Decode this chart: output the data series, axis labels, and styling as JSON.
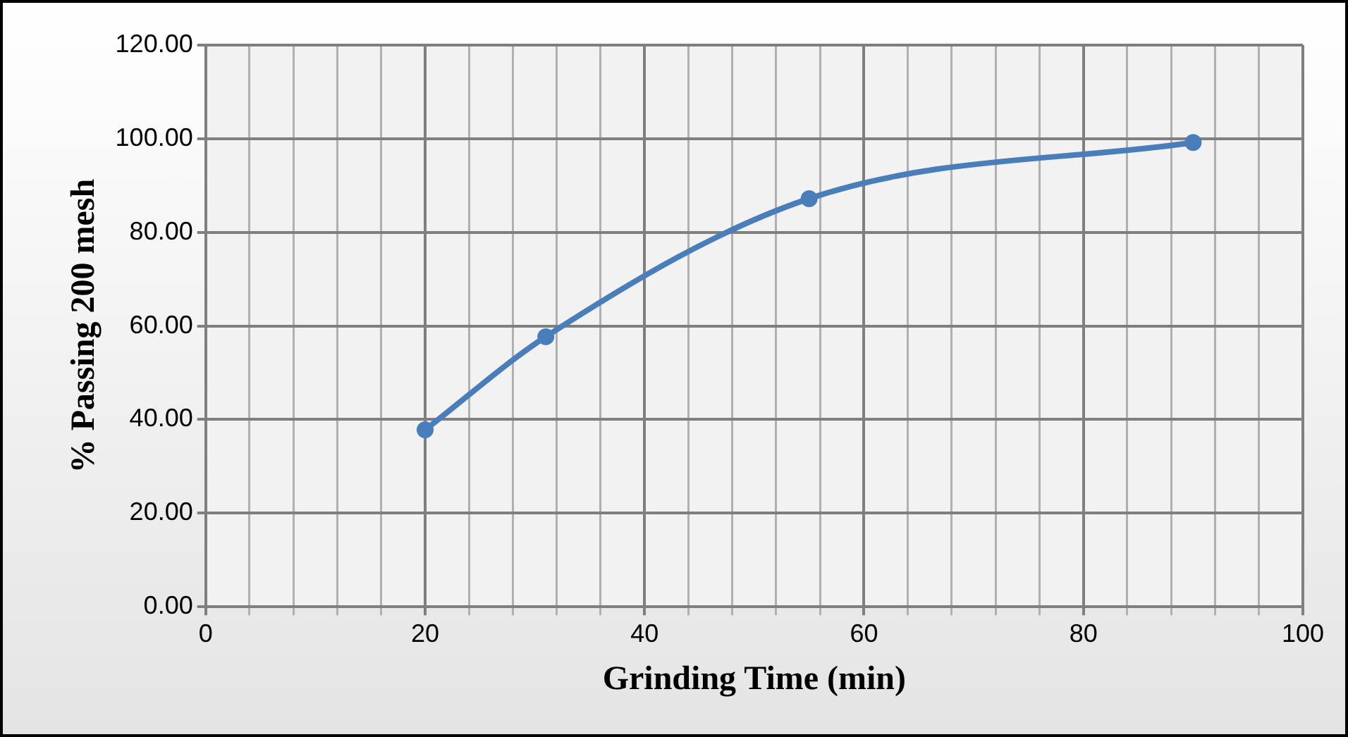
{
  "chart_data": {
    "type": "line",
    "xlabel": "Grinding Time (min)",
    "ylabel": "% Passing 200 mesh",
    "x": [
      20,
      31,
      55,
      90
    ],
    "series": [
      {
        "color": "#4a7ebb",
        "values": [
          37.8,
          57.7,
          87.2,
          99.2
        ]
      }
    ],
    "xlim": [
      0,
      100
    ],
    "xticks": [
      0,
      {
        "value": 4,
        "label": null
      },
      {
        "value": 8,
        "label": null
      },
      {
        "value": 12,
        "label": null
      },
      {
        "value": 16,
        "label": null
      },
      20,
      {
        "value": 24,
        "label": null
      },
      {
        "value": 28,
        "label": null
      },
      {
        "value": 32,
        "label": null
      },
      {
        "value": 36,
        "label": null
      },
      40,
      {
        "value": 44,
        "label": null
      },
      {
        "value": 48,
        "label": null
      },
      {
        "value": 52,
        "label": null
      },
      {
        "value": 56,
        "label": null
      },
      60,
      {
        "value": 64,
        "label": null
      },
      {
        "value": 68,
        "label": null
      },
      {
        "value": 72,
        "label": null
      },
      {
        "value": 76,
        "label": null
      },
      80,
      {
        "value": 84,
        "label": null
      },
      {
        "value": 88,
        "label": null
      },
      {
        "value": 92,
        "label": null
      },
      {
        "value": 96,
        "label": null
      },
      100
    ],
    "ylim": [
      0,
      120
    ],
    "yticks": [
      {
        "value": 0,
        "label": "0.00"
      },
      {
        "value": 20,
        "label": "20.00"
      },
      {
        "value": 40,
        "label": "40.00"
      },
      {
        "value": 60,
        "label": "60.00"
      },
      {
        "value": 80,
        "label": "80.00"
      },
      {
        "value": 100,
        "label": "100.00"
      },
      {
        "value": 120,
        "label": "120.00"
      }
    ],
    "grid": true,
    "marker": "circle",
    "line_style": "solid"
  }
}
